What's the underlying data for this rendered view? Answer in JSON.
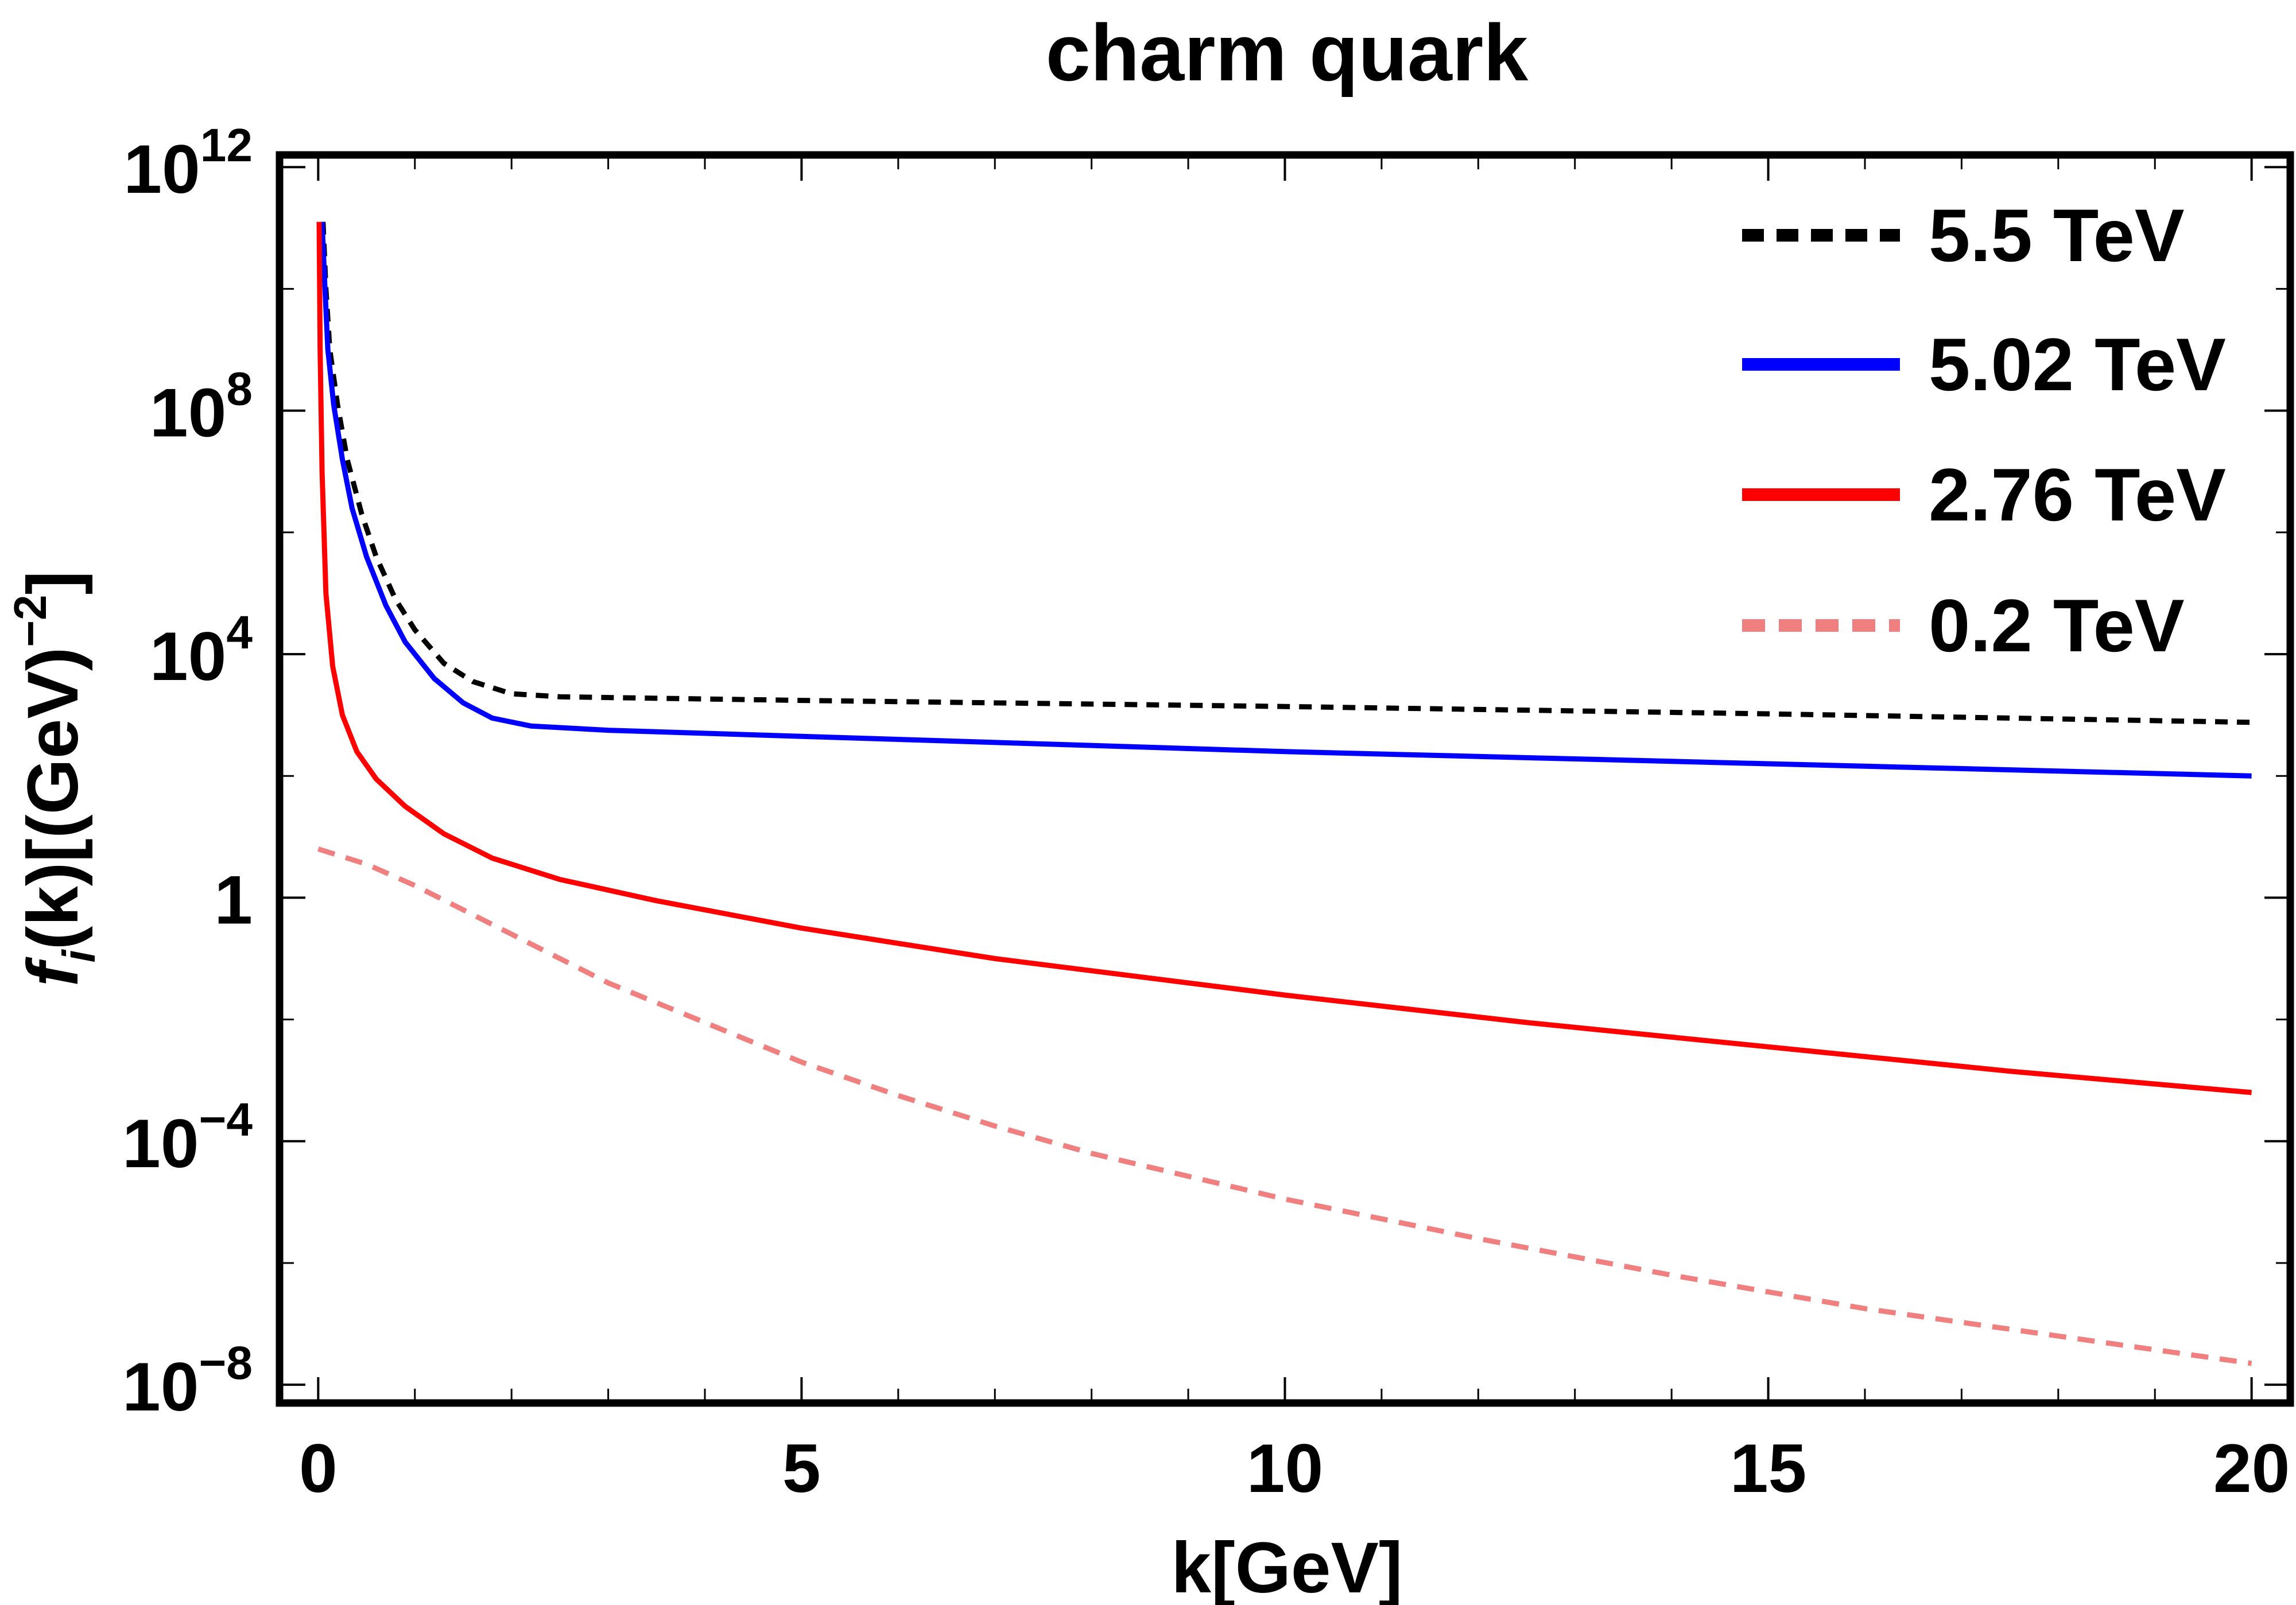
{
  "chart_data": {
    "type": "line",
    "title": "charm quark",
    "xlabel": "k[GeV]",
    "ylabel": {
      "f": "f",
      "sub": "i",
      "main": "(k)[(GeV)",
      "sup": "−2",
      "close": "]"
    },
    "xlim": [
      -0.4,
      20.4
    ],
    "ylim_log10": [
      -8.3,
      12.2
    ],
    "y_scale": "log",
    "grid": false,
    "legend_position": "top-right",
    "x_ticks": [
      {
        "value": 0,
        "label": "0"
      },
      {
        "value": 5,
        "label": "5"
      },
      {
        "value": 10,
        "label": "10"
      },
      {
        "value": 15,
        "label": "15"
      },
      {
        "value": 20,
        "label": "20"
      }
    ],
    "y_ticks": [
      {
        "log": 12,
        "base": "10",
        "exp": "12"
      },
      {
        "log": 8,
        "base": "10",
        "exp": "8"
      },
      {
        "log": 4,
        "base": "10",
        "exp": "4"
      },
      {
        "log": 0,
        "base": "1",
        "exp": ""
      },
      {
        "log": -4,
        "base": "10",
        "exp": "−4"
      },
      {
        "log": -8,
        "base": "10",
        "exp": "−8"
      }
    ],
    "series": [
      {
        "name": "5.5 TeV",
        "color": "#000000",
        "dash": "dotted",
        "points": [
          [
            0.05,
            11.1
          ],
          [
            0.08,
            10.0
          ],
          [
            0.12,
            9.0
          ],
          [
            0.2,
            8.1
          ],
          [
            0.3,
            7.2
          ],
          [
            0.45,
            6.3
          ],
          [
            0.6,
            5.6
          ],
          [
            0.8,
            4.9
          ],
          [
            1.0,
            4.4
          ],
          [
            1.3,
            3.85
          ],
          [
            1.6,
            3.55
          ],
          [
            2.0,
            3.35
          ],
          [
            2.5,
            3.3
          ],
          [
            5,
            3.24
          ],
          [
            10,
            3.14
          ],
          [
            15,
            3.02
          ],
          [
            20,
            2.88
          ]
        ]
      },
      {
        "name": "5.02 TeV",
        "color": "#0000ff",
        "dash": "solid",
        "points": [
          [
            0.04,
            11.1
          ],
          [
            0.07,
            10.0
          ],
          [
            0.1,
            9.0
          ],
          [
            0.16,
            8.1
          ],
          [
            0.25,
            7.2
          ],
          [
            0.35,
            6.4
          ],
          [
            0.5,
            5.6
          ],
          [
            0.7,
            4.8
          ],
          [
            0.9,
            4.2
          ],
          [
            1.2,
            3.6
          ],
          [
            1.5,
            3.2
          ],
          [
            1.8,
            2.95
          ],
          [
            2.2,
            2.82
          ],
          [
            3,
            2.75
          ],
          [
            5,
            2.65
          ],
          [
            10,
            2.4
          ],
          [
            15,
            2.2
          ],
          [
            20,
            2.0
          ]
        ]
      },
      {
        "name": "2.76 TeV",
        "color": "#ff0000",
        "dash": "solid",
        "points": [
          [
            0.01,
            11.1
          ],
          [
            0.02,
            9.0
          ],
          [
            0.04,
            7.0
          ],
          [
            0.08,
            5.0
          ],
          [
            0.15,
            3.8
          ],
          [
            0.25,
            3.0
          ],
          [
            0.4,
            2.4
          ],
          [
            0.6,
            1.95
          ],
          [
            0.9,
            1.5
          ],
          [
            1.3,
            1.05
          ],
          [
            1.8,
            0.65
          ],
          [
            2.5,
            0.3
          ],
          [
            3.5,
            -0.05
          ],
          [
            5,
            -0.5
          ],
          [
            7,
            -1.0
          ],
          [
            10,
            -1.6
          ],
          [
            12.5,
            -2.05
          ],
          [
            15,
            -2.45
          ],
          [
            17.5,
            -2.85
          ],
          [
            20,
            -3.2
          ]
        ]
      },
      {
        "name": "0.2 TeV",
        "color": "#f08080",
        "dash": "dashed",
        "points": [
          [
            0,
            0.8
          ],
          [
            0.5,
            0.55
          ],
          [
            1,
            0.2
          ],
          [
            2,
            -0.6
          ],
          [
            3,
            -1.4
          ],
          [
            4,
            -2.05
          ],
          [
            5,
            -2.7
          ],
          [
            6,
            -3.25
          ],
          [
            7,
            -3.75
          ],
          [
            8,
            -4.2
          ],
          [
            10,
            -4.95
          ],
          [
            12,
            -5.6
          ],
          [
            14,
            -6.2
          ],
          [
            16,
            -6.75
          ],
          [
            18,
            -7.2
          ],
          [
            20,
            -7.65
          ]
        ]
      }
    ]
  }
}
